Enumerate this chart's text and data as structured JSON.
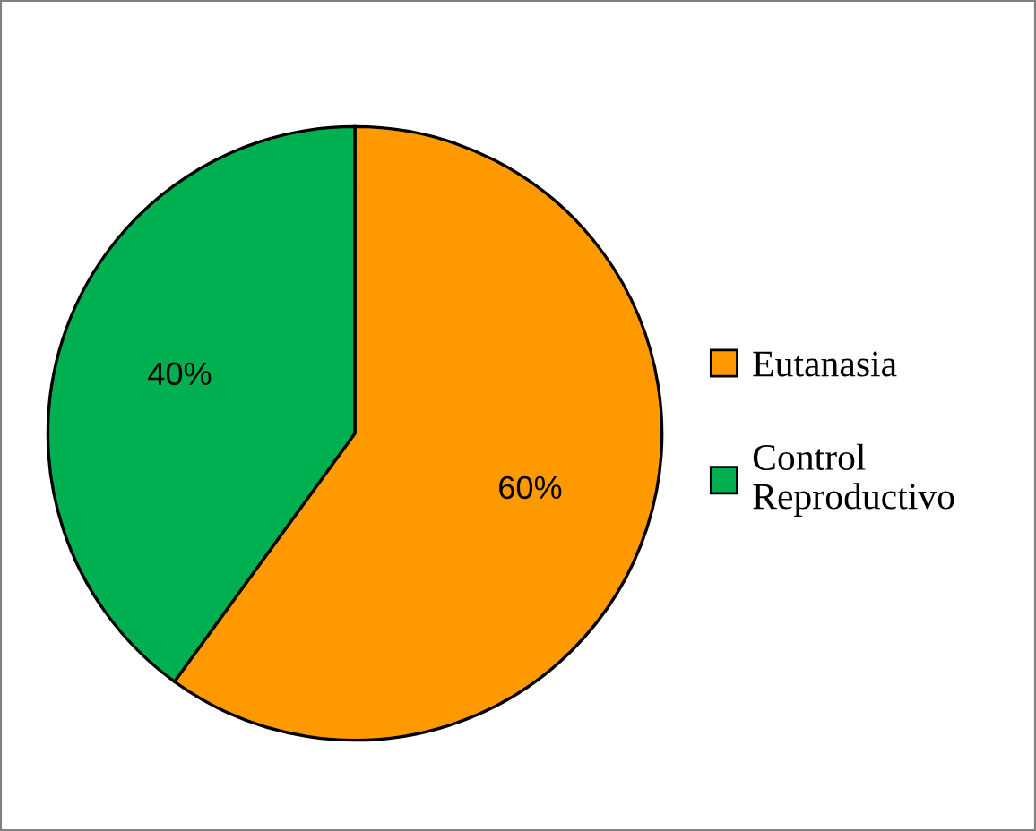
{
  "chart_data": {
    "type": "pie",
    "categories": [
      "Eutanasia",
      "Control\nReproductivo"
    ],
    "values": [
      60,
      40
    ],
    "colors": [
      "#ff9900",
      "#00b050"
    ],
    "value_labels": [
      "60%",
      "40%"
    ],
    "legend": "right"
  }
}
